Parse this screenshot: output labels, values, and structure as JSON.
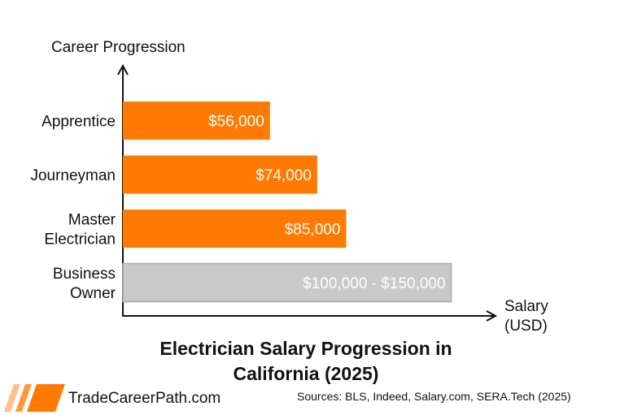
{
  "chart_data": {
    "type": "bar",
    "orientation": "horizontal",
    "title": "Electrician Salary Progression in\nCalifornia (2025)",
    "ylabel": "Career Progression",
    "xlabel": "Salary\n(USD)",
    "categories": [
      "Apprentice",
      "Journeyman",
      "Master\nElectrician",
      "Business\nOwner"
    ],
    "values": [
      56000,
      74000,
      85000,
      125000
    ],
    "value_labels": [
      "$56,000",
      "$74,000",
      "$85,000",
      "$100,000 - $150,000"
    ],
    "range_note": [
      null,
      null,
      null,
      [
        100000,
        150000
      ]
    ],
    "bar_colors": [
      "#ff7a00",
      "#ff7a00",
      "#ff7a00",
      "#c9c9c9"
    ],
    "xlim": [
      0,
      140000
    ],
    "grid": false
  },
  "branding": {
    "site": "TradeCareerPath.com"
  },
  "sources": "Sources: BLS, Indeed, Salary.com, SERA.Tech (2025)",
  "colors": {
    "accent": "#ff7a00",
    "muted": "#c9c9c9"
  },
  "icons": {
    "logo": "stripes-logo-icon"
  }
}
